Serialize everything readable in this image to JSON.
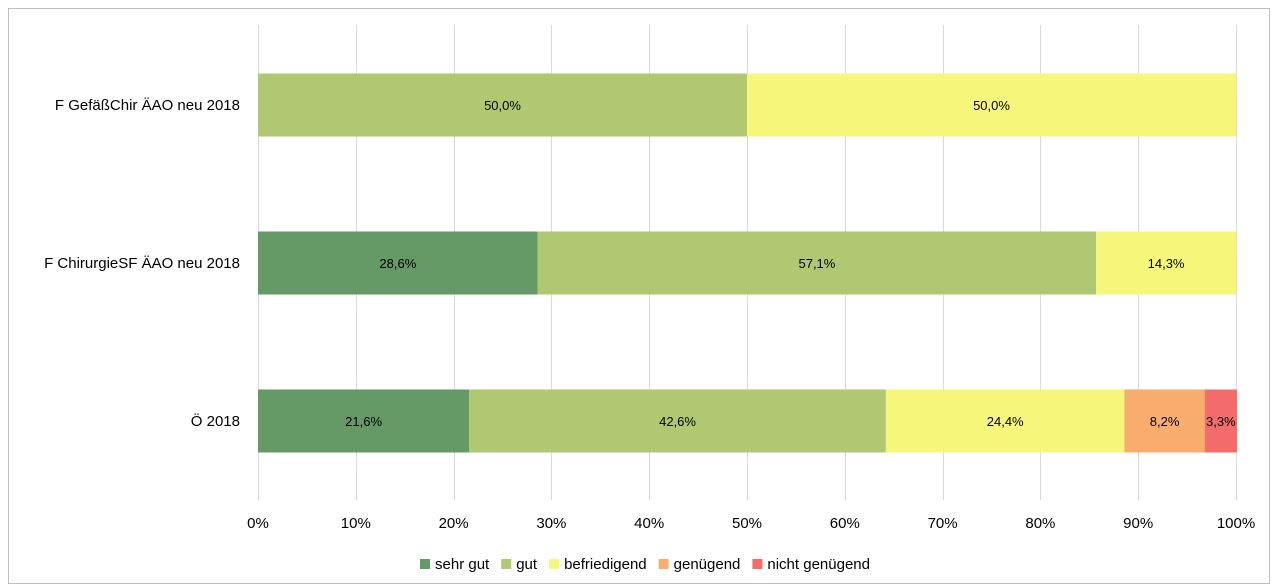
{
  "chart_data": {
    "type": "bar",
    "orientation": "horizontal",
    "stacked": "100%",
    "categories": [
      "F GefäßChir ÄAO neu 2018",
      "F ChirurgieSF ÄAO neu 2018",
      "Ö 2018"
    ],
    "series": [
      {
        "name": "sehr gut",
        "color": "#659a66",
        "values": [
          0,
          28.6,
          21.6
        ],
        "labels": [
          "",
          "28,6%",
          "21,6%"
        ]
      },
      {
        "name": "gut",
        "color": "#b0c871",
        "values": [
          50.0,
          57.1,
          42.6
        ],
        "labels": [
          "50,0%",
          "57,1%",
          "42,6%"
        ]
      },
      {
        "name": "befriedigend",
        "color": "#f6f67a",
        "values": [
          50.0,
          14.3,
          24.4
        ],
        "labels": [
          "50,0%",
          "14,3%",
          "24,4%"
        ]
      },
      {
        "name": "genügend",
        "color": "#f8ad6e",
        "values": [
          0,
          0,
          8.2
        ],
        "labels": [
          "",
          "",
          "8,2%"
        ]
      },
      {
        "name": "nicht genügend",
        "color": "#f46b6b",
        "values": [
          0,
          0,
          3.3
        ],
        "labels": [
          "",
          "",
          "3,3%"
        ]
      }
    ],
    "xlim": [
      0,
      100
    ],
    "xticks": [
      "0%",
      "10%",
      "20%",
      "30%",
      "40%",
      "50%",
      "60%",
      "70%",
      "80%",
      "90%",
      "100%"
    ],
    "grid": "vertical",
    "legend": "bottom",
    "title": "",
    "xlabel": "",
    "ylabel": ""
  }
}
